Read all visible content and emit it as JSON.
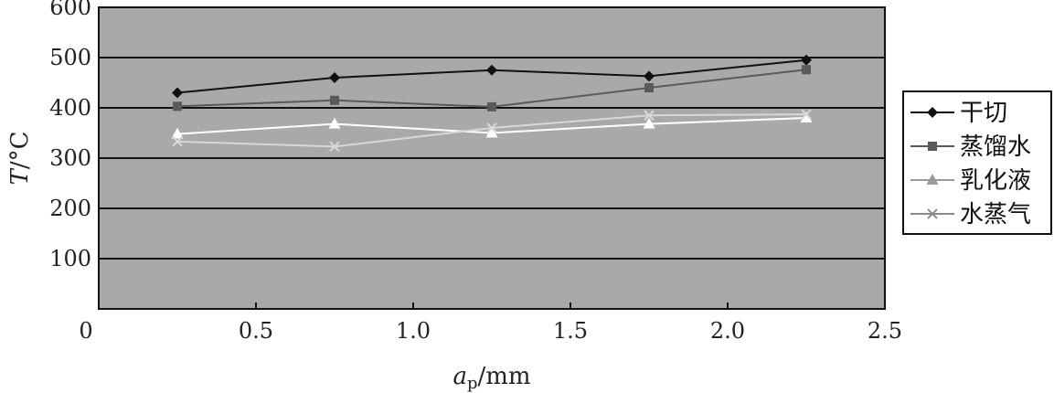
{
  "chart_data": {
    "type": "line",
    "xlabel_main": "a",
    "xlabel_sub": "p",
    "xlabel_unit": "/mm",
    "ylabel_main": "T",
    "ylabel_unit": "/°C",
    "xlim": [
      0,
      2.5
    ],
    "ylim": [
      0,
      600
    ],
    "x_ticks": [
      "0",
      "0.5",
      "1.0",
      "1.5",
      "2.0",
      "2.5"
    ],
    "y_ticks": [
      "100",
      "200",
      "300",
      "400",
      "500",
      "600"
    ],
    "grid": "horizontal",
    "legend_position": "right",
    "plot_background": "#a9a9a9",
    "x": [
      0.25,
      0.75,
      1.25,
      1.75,
      2.25
    ],
    "series": [
      {
        "name": "干切",
        "marker": "diamond",
        "color": "#111111",
        "values": [
          430,
          460,
          475,
          463,
          495
        ]
      },
      {
        "name": "蒸馏水",
        "marker": "square",
        "color": "#5a5a5a",
        "values": [
          403,
          415,
          402,
          440,
          476
        ]
      },
      {
        "name": "乳化液",
        "marker": "triangle",
        "color": "#ffffff",
        "values": [
          348,
          368,
          350,
          368,
          380
        ]
      },
      {
        "name": "水蒸气",
        "marker": "x",
        "color": "#d8d8d8",
        "values": [
          333,
          323,
          360,
          385,
          387
        ]
      }
    ]
  }
}
